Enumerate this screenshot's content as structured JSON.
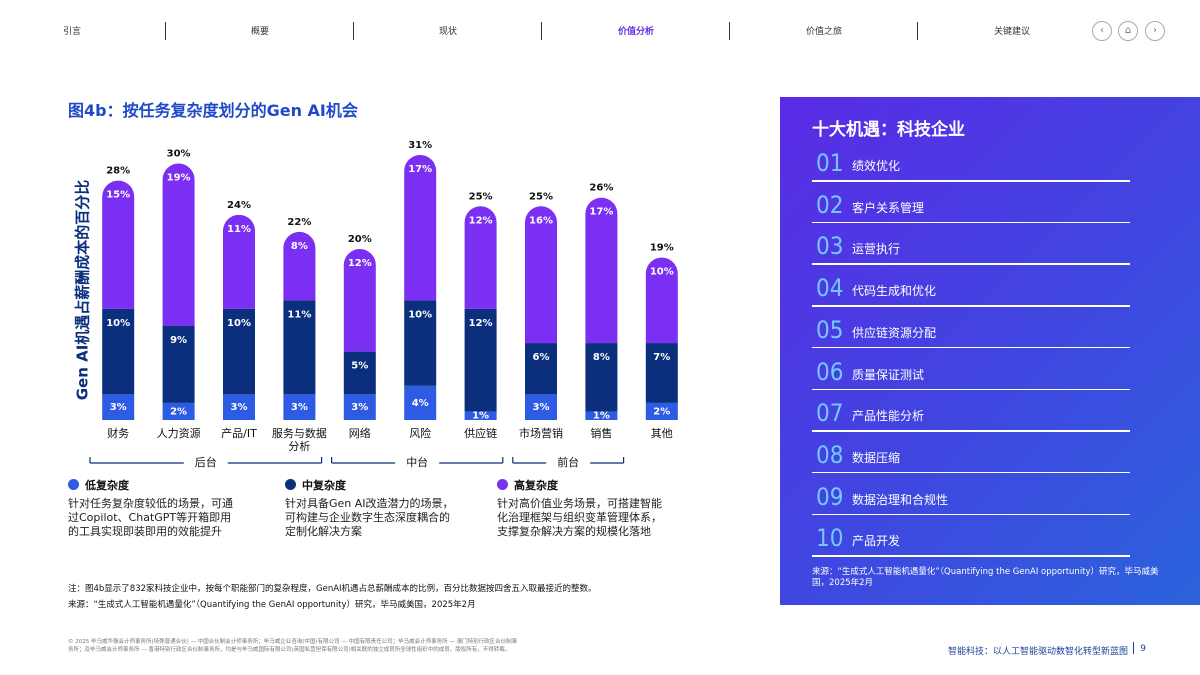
{
  "nav": {
    "items": [
      "引言",
      "概要",
      "现状",
      "价值分析",
      "价值之旅",
      "关键建议"
    ],
    "active": 3
  },
  "chart_data": {
    "type": "bar",
    "title": "图4b：按任务复杂度划分的Gen AI机会",
    "y_label": "Gen AI机遇占薪酬成本的百分比",
    "categories": [
      "财务",
      "人力资源",
      "产品/IT",
      "服务与数据分析",
      "网络",
      "风险",
      "供应链",
      "市场营销",
      "销售",
      "其他"
    ],
    "series": [
      {
        "name": "低复杂度",
        "color": "#2d5be3",
        "values": [
          3,
          2,
          3,
          3,
          3,
          4,
          1,
          3,
          1,
          2
        ],
        "value_labels": [
          "3%",
          "2%",
          "3%",
          "3%",
          "3%",
          "4%",
          "1%",
          "3%",
          "1%",
          "2%"
        ],
        "description": "针对任务复杂度较低的场景，可通过Copilot、ChatGPT等开箱即用的工具实现即装即用的效能提升"
      },
      {
        "name": "中复杂度",
        "color": "#0b2f7c",
        "values": [
          10,
          9,
          10,
          11,
          5,
          10,
          12,
          6,
          8,
          7
        ],
        "value_labels": [
          "10%",
          "9%",
          "10%",
          "11%",
          "5%",
          "10%",
          "12%",
          "6%",
          "8%",
          "7%"
        ],
        "description": "针对具备Gen AI改造潜力的场景，可构建与企业数字生态深度耦合的定制化解决方案"
      },
      {
        "name": "高复杂度",
        "color": "#7a2ff2",
        "values": [
          15,
          19,
          11,
          8,
          12,
          17,
          12,
          16,
          17,
          10
        ],
        "value_labels": [
          "15%",
          "19%",
          "11%",
          "8%",
          "12%",
          "17%",
          "12%",
          "16%",
          "17%",
          "10%"
        ],
        "description": "针对高价值业务场景，可搭建智能化治理框架与组织变革管理体系，支撑复杂解决方案的规模化落地"
      }
    ],
    "totals": {
      "values": [
        28,
        30,
        24,
        22,
        20,
        31,
        25,
        25,
        26,
        19
      ],
      "value_labels": [
        "28%",
        "30%",
        "24%",
        "22%",
        "20%",
        "31%",
        "25%",
        "25%",
        "26%",
        "19%"
      ]
    },
    "groups": [
      "后台",
      "中台",
      "前台"
    ],
    "notes": [
      "注：图4b显示了832家科技企业中，按每个职能部门的复杂程度，GenAI机遇占总薪酬成本的比例，百分比数据按四舍五入取最接近的整数。",
      "来源：“生成式人工智能机遇量化”（Quantifying the GenAI opportunity）研究，毕马威美国，2025年2月"
    ]
  },
  "panel": {
    "title": "十大机遇：科技企业",
    "items": [
      {
        "number": "01",
        "label": "绩效优化"
      },
      {
        "number": "02",
        "label": "客户关系管理"
      },
      {
        "number": "03",
        "label": "运营执行"
      },
      {
        "number": "04",
        "label": "代码生成和优化"
      },
      {
        "number": "05",
        "label": "供应链资源分配"
      },
      {
        "number": "06",
        "label": "质量保证测试"
      },
      {
        "number": "07",
        "label": "产品性能分析"
      },
      {
        "number": "08",
        "label": "数据压缩"
      },
      {
        "number": "09",
        "label": "数据治理和合规性"
      },
      {
        "number": "10",
        "label": "产品开发"
      }
    ],
    "source": "来源：“生成式人工智能机遇量化”（Quantifying the GenAI opportunity）研究，毕马威美国，2025年2月"
  },
  "footer": {
    "legal": "© 2025 毕马威华振会计师事务所(特殊普通合伙) — 中国合伙制会计师事务所；毕马威企业咨询(中国)有限公司 — 中国有限责任公司；毕马威会计师事务所 — 澳门特别行政区合伙制事务所；及毕马威会计师事务所 — 香港特别行政区合伙制事务所，均是与毕马威国际有限公司(英国私营担保有限公司)相关联的独立成员所全球性组织中的成员。版权所有，不得转载。",
    "caption": "智能科技：以人工智能驱动数智化转型新蓝图",
    "page": "9"
  }
}
